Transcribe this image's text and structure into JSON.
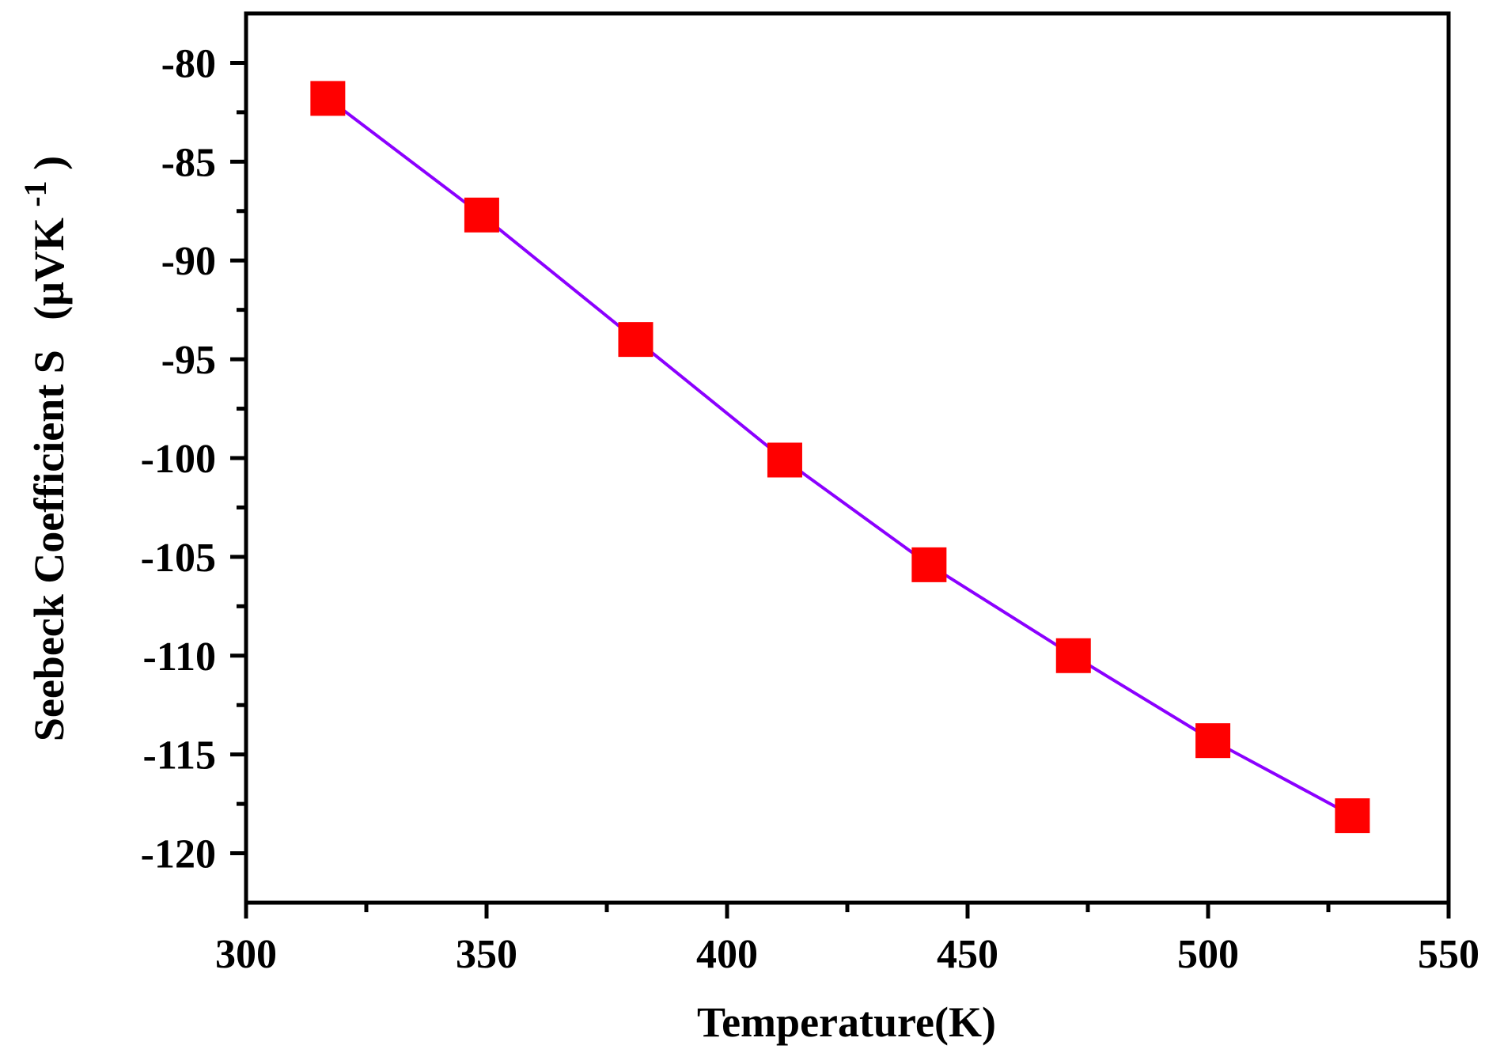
{
  "chart_data": {
    "type": "line",
    "title": "",
    "xlabel": "Temperature(K)",
    "ylabel": {
      "main": "Seebeck Coefficient S",
      "unit_open": "(μVK",
      "unit_sup": "-1",
      "unit_close": ")"
    },
    "xlim": [
      300,
      550
    ],
    "ylim": [
      -122.5,
      -77.5
    ],
    "x_major_ticks": [
      300,
      350,
      400,
      450,
      500,
      550
    ],
    "x_minor_ticks": [
      325,
      375,
      425,
      475,
      525
    ],
    "y_major_ticks": [
      -80,
      -85,
      -90,
      -95,
      -100,
      -105,
      -110,
      -115,
      -120
    ],
    "y_minor_ticks": [
      -82.5,
      -87.5,
      -92.5,
      -97.5,
      -102.5,
      -107.5,
      -112.5,
      -117.5
    ],
    "x_tick_labels": [
      "300",
      "350",
      "400",
      "450",
      "500",
      "550"
    ],
    "y_tick_labels": [
      "-80",
      "-85",
      "-90",
      "-95",
      "-100",
      "-105",
      "-110",
      "-115",
      "-120"
    ],
    "grid": false,
    "series": [
      {
        "x": [
          317,
          349,
          381,
          412,
          442,
          472,
          501,
          530
        ],
        "y": [
          -81.8,
          -87.7,
          -94.0,
          -100.1,
          -105.4,
          -110.0,
          -114.3,
          -118.1
        ]
      }
    ],
    "colors": {
      "line": "#8B00FF",
      "marker": "#FF0000",
      "axis": "#000000"
    },
    "marker": "square"
  }
}
